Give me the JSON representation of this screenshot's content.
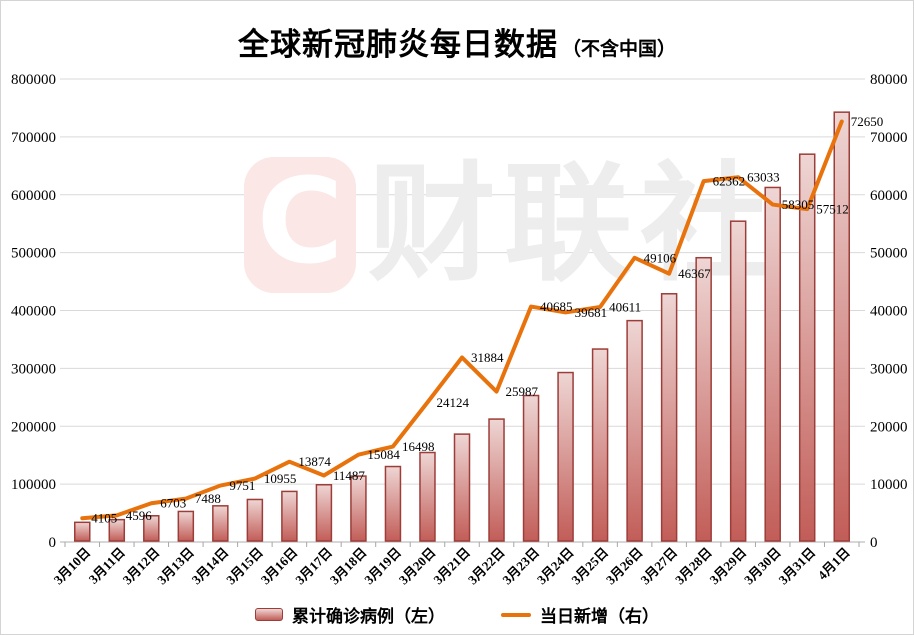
{
  "title": {
    "main": "全球新冠肺炎每日数据",
    "sub": "（不含中国）"
  },
  "watermark": {
    "logo_letter": "C",
    "text": "财联社"
  },
  "legend": [
    {
      "label": "累计确诊病例（左）",
      "swatch": "bar"
    },
    {
      "label": "当日新增（右）",
      "swatch": "line"
    }
  ],
  "chart_data": {
    "type": "bar+line",
    "title": "全球新冠肺炎每日数据（不含中国）",
    "categories": [
      "3月10日",
      "3月11日",
      "3月12日",
      "3月13日",
      "3月14日",
      "3月15日",
      "3月16日",
      "3月17日",
      "3月18日",
      "3月19日",
      "3月20日",
      "3月21日",
      "3月22日",
      "3月23日",
      "3月24日",
      "3月25日",
      "3月26日",
      "3月27日",
      "3月28日",
      "3月29日",
      "3月30日",
      "3月31日",
      "4月1日"
    ],
    "series": [
      {
        "name": "累计确诊病例",
        "type": "bar",
        "axis": "left",
        "values_estimated_from_gridlines": true,
        "values": [
          34000,
          38600,
          45300,
          52800,
          62500,
          73500,
          87400,
          98900,
          113900,
          130400,
          154600,
          186400,
          212400,
          253100,
          292800,
          333400,
          382500,
          428900,
          491200,
          554300,
          612600,
          670100,
          742700
        ]
      },
      {
        "name": "当日新增",
        "type": "line",
        "axis": "right",
        "data_labels_shown": true,
        "values": [
          4105,
          4596,
          6703,
          7488,
          9751,
          10955,
          13874,
          11487,
          15084,
          16498,
          24124,
          31884,
          25987,
          40685,
          39681,
          40611,
          49106,
          46367,
          62362,
          63033,
          58305,
          57512,
          72650
        ]
      }
    ],
    "left_axis": {
      "min": 0,
      "max": 800000,
      "step": 100000,
      "ticks": [
        "800000",
        "700000",
        "600000",
        "500000",
        "400000",
        "300000",
        "200000",
        "100000",
        "0"
      ]
    },
    "right_axis": {
      "min": 0,
      "max": 80000,
      "step": 10000,
      "ticks": [
        "80000",
        "70000",
        "60000",
        "50000",
        "40000",
        "30000",
        "20000",
        "10000",
        "0"
      ]
    },
    "grid": true,
    "legend_position": "bottom",
    "colors": {
      "line": "#e8720c",
      "bar_fill_top": "#eed6d4",
      "bar_fill_bottom": "#c25d58",
      "bar_border": "#9c3d39",
      "gridline": "#d9d9d9",
      "axis": "#bfbfbf",
      "tick": "#a6a6a6",
      "text": "#000000",
      "watermark_text": "#ededed",
      "watermark_logo_bg": "#fae7e6",
      "watermark_logo_letter": "#ffffff"
    }
  }
}
